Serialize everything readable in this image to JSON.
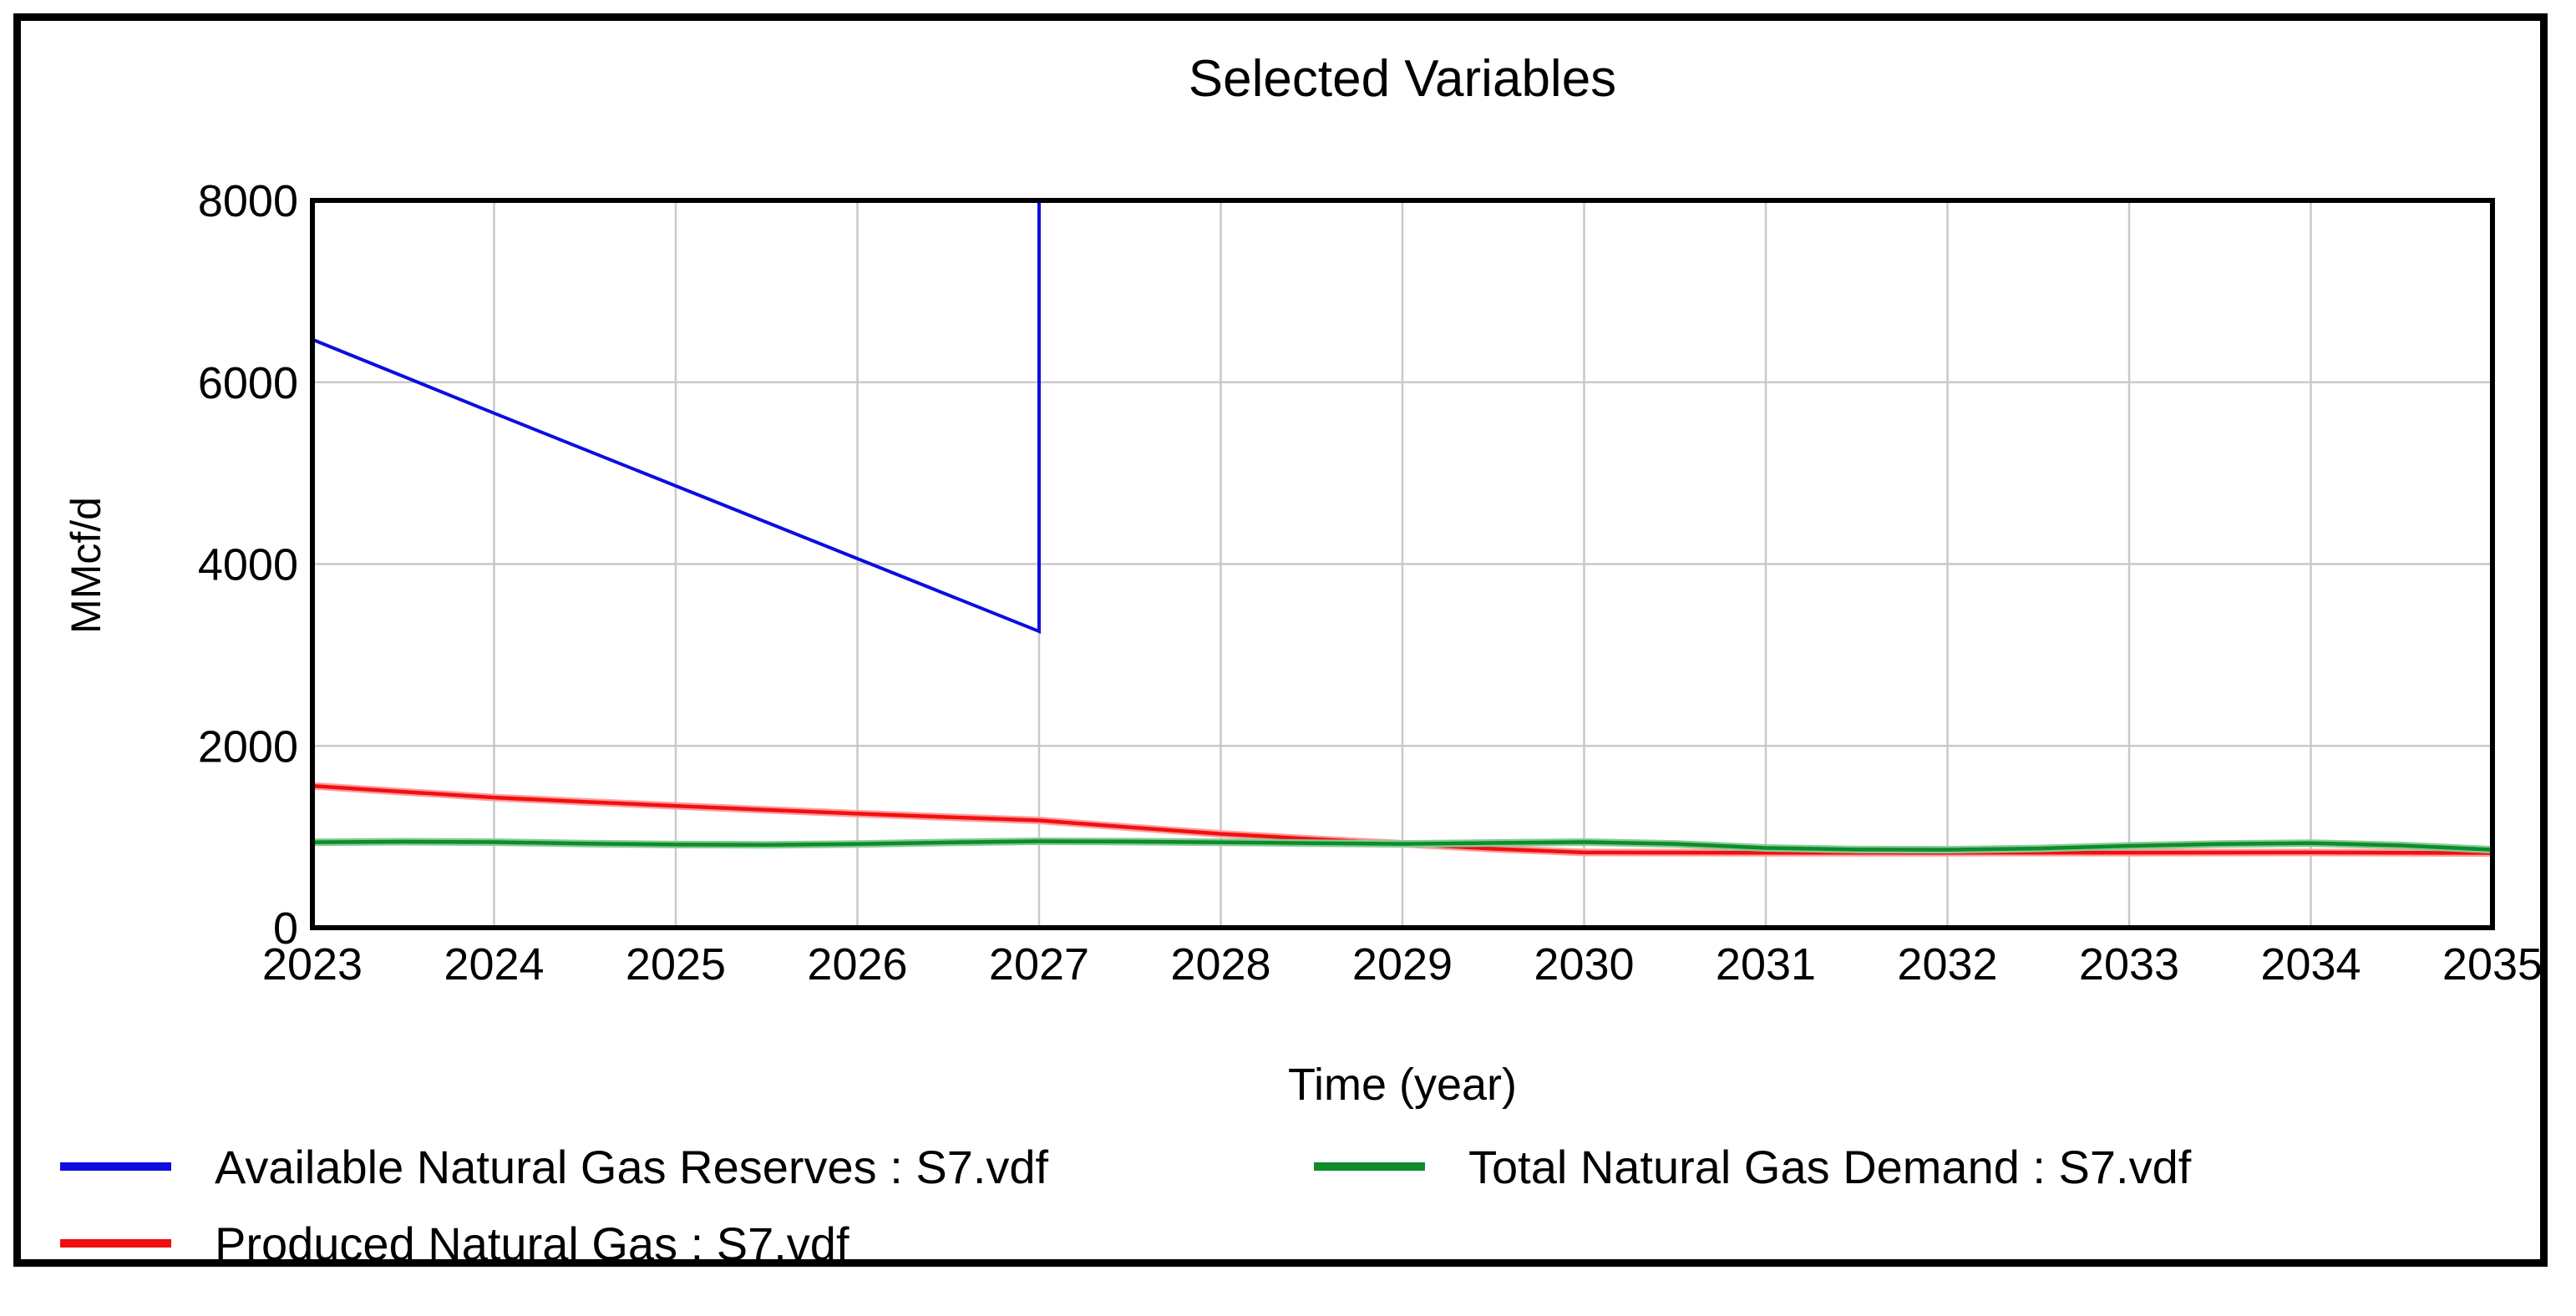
{
  "title": "Selected Variables",
  "chart_data": {
    "type": "line",
    "title": "Selected Variables",
    "xlabel": "Time (year)",
    "ylabel": "MMcf/d",
    "xlim": [
      2023,
      2035
    ],
    "ylim": [
      0,
      8000
    ],
    "x_ticks": [
      2023,
      2024,
      2025,
      2026,
      2027,
      2028,
      2029,
      2030,
      2031,
      2032,
      2033,
      2034,
      2035
    ],
    "y_ticks": [
      0,
      2000,
      4000,
      6000,
      8000
    ],
    "grid": true,
    "legend_position": "bottom",
    "series": [
      {
        "name": "Available Natural Gas Reserves : S7.vdf",
        "color": "#0d0de0",
        "halo": "#9a9af2",
        "points": [
          [
            2023,
            6470
          ],
          [
            2024,
            5660
          ],
          [
            2025,
            4860
          ],
          [
            2026,
            4060
          ],
          [
            2027,
            3260
          ],
          [
            2027,
            8600
          ]
        ]
      },
      {
        "name": "Produced Natural Gas : S7.vdf",
        "color": "#f01010",
        "halo": "#ff9d9d",
        "points": [
          [
            2023,
            1560
          ],
          [
            2023.5,
            1495
          ],
          [
            2024,
            1432
          ],
          [
            2024.5,
            1385
          ],
          [
            2025,
            1340
          ],
          [
            2025.5,
            1296
          ],
          [
            2026,
            1255
          ],
          [
            2026.5,
            1216
          ],
          [
            2027,
            1180
          ],
          [
            2027.5,
            1104
          ],
          [
            2028,
            1032
          ],
          [
            2028.5,
            976
          ],
          [
            2029,
            924
          ],
          [
            2029.5,
            868
          ],
          [
            2030,
            828
          ],
          [
            2031,
            825
          ],
          [
            2032,
            825
          ],
          [
            2033,
            826
          ],
          [
            2034,
            828
          ],
          [
            2035,
            822
          ]
        ]
      },
      {
        "name": "Total Natural Gas Demand : S7.vdf",
        "color": "#0e8c2a",
        "halo": "#85cc96",
        "points": [
          [
            2023,
            940
          ],
          [
            2023.5,
            946
          ],
          [
            2024,
            941
          ],
          [
            2024.5,
            926
          ],
          [
            2025,
            915
          ],
          [
            2025.5,
            912
          ],
          [
            2026,
            920
          ],
          [
            2026.5,
            938
          ],
          [
            2027,
            951
          ],
          [
            2027.5,
            947
          ],
          [
            2028,
            940
          ],
          [
            2028.5,
            930
          ],
          [
            2029,
            922
          ],
          [
            2029.5,
            932
          ],
          [
            2030,
            941
          ],
          [
            2030.5,
            922
          ],
          [
            2031,
            877
          ],
          [
            2031.5,
            860
          ],
          [
            2032,
            858
          ],
          [
            2032.5,
            872
          ],
          [
            2033,
            900
          ],
          [
            2033.5,
            921
          ],
          [
            2034,
            930
          ],
          [
            2034.5,
            905
          ],
          [
            2035,
            858
          ]
        ]
      }
    ]
  }
}
